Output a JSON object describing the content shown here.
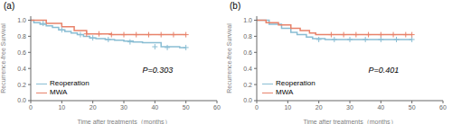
{
  "chart_data": [
    {
      "type": "line",
      "title": "(a)",
      "xlabel": "Time after treatments（months）",
      "ylabel": "Recurrence-free Survival",
      "annotations": [
        "P=0.303"
      ],
      "xlim": [
        0,
        60
      ],
      "ylim": [
        0.0,
        1.05
      ],
      "xticks": [
        0,
        10,
        20,
        30,
        40,
        50,
        60
      ],
      "yticks": [
        {
          "value": 0.0,
          "label": "0.0"
        },
        0.2,
        0.4,
        0.6,
        0.8,
        {
          "value": 1.0,
          "label": "1.0"
        }
      ],
      "grid": false,
      "legend": "lower left",
      "series": [
        {
          "name": "Reoperation",
          "type": "step",
          "color": "#89bdd3",
          "x": [
            0,
            1,
            3,
            5,
            7,
            9,
            11,
            13,
            15,
            17,
            19,
            21,
            24,
            27,
            30,
            33,
            36,
            42,
            48,
            50
          ],
          "values": [
            1.0,
            0.97,
            0.95,
            0.93,
            0.91,
            0.88,
            0.86,
            0.84,
            0.82,
            0.8,
            0.78,
            0.77,
            0.76,
            0.75,
            0.74,
            0.73,
            0.72,
            0.67,
            0.66,
            0.66
          ]
        },
        {
          "name": "MWA",
          "type": "step",
          "color": "#e8826a",
          "x": [
            0,
            5,
            10,
            14,
            18,
            22,
            26,
            50
          ],
          "values": [
            1.0,
            0.96,
            0.92,
            0.87,
            0.83,
            0.83,
            0.82,
            0.82
          ]
        },
        {
          "type": "scatter",
          "marker": "+",
          "color": "#89bdd3",
          "x": [
            4,
            10,
            16,
            20,
            25,
            32,
            40,
            44,
            50
          ],
          "values": [
            0.96,
            0.88,
            0.82,
            0.78,
            0.76,
            0.73,
            0.67,
            0.66,
            0.66
          ]
        },
        {
          "type": "scatter",
          "marker": "+",
          "color": "#e8826a",
          "x": [
            18,
            22,
            26,
            30,
            34,
            38,
            42,
            46,
            50
          ],
          "values": [
            0.83,
            0.83,
            0.82,
            0.82,
            0.82,
            0.82,
            0.82,
            0.82,
            0.82
          ]
        }
      ]
    },
    {
      "type": "line",
      "title": "(b)",
      "xlabel": "Time after treatments（months）",
      "ylabel": "Recurrence-free Survival",
      "annotations": [
        "P=0.401"
      ],
      "xlim": [
        0,
        60
      ],
      "ylim": [
        0.0,
        1.05
      ],
      "xticks": [
        0,
        10,
        20,
        30,
        40,
        50,
        60
      ],
      "yticks": [
        {
          "value": 0.0,
          "label": "0.0"
        },
        0.2,
        0.4,
        0.6,
        0.8,
        {
          "value": 1.0,
          "label": "1.0"
        }
      ],
      "grid": false,
      "legend": "lower left",
      "series": [
        {
          "name": "Reoperation",
          "type": "step",
          "color": "#89bdd3",
          "x": [
            0,
            4,
            8,
            11,
            13,
            16,
            18,
            22,
            50
          ],
          "values": [
            1.0,
            0.95,
            0.9,
            0.85,
            0.82,
            0.79,
            0.77,
            0.76,
            0.76
          ]
        },
        {
          "name": "MWA",
          "type": "step",
          "color": "#e8826a",
          "x": [
            0,
            3,
            7,
            11,
            14,
            17,
            19,
            22,
            50
          ],
          "values": [
            1.0,
            0.97,
            0.94,
            0.9,
            0.87,
            0.84,
            0.82,
            0.82,
            0.82
          ]
        },
        {
          "type": "scatter",
          "marker": "+",
          "color": "#89bdd3",
          "x": [
            20,
            25,
            30,
            35,
            40,
            45,
            50
          ],
          "values": [
            0.76,
            0.76,
            0.76,
            0.76,
            0.76,
            0.76,
            0.76
          ]
        },
        {
          "type": "scatter",
          "marker": "+",
          "color": "#e8826a",
          "x": [
            24,
            28,
            32,
            36,
            40,
            44,
            48,
            50
          ],
          "values": [
            0.82,
            0.82,
            0.82,
            0.82,
            0.82,
            0.82,
            0.82,
            0.82
          ]
        }
      ]
    }
  ]
}
